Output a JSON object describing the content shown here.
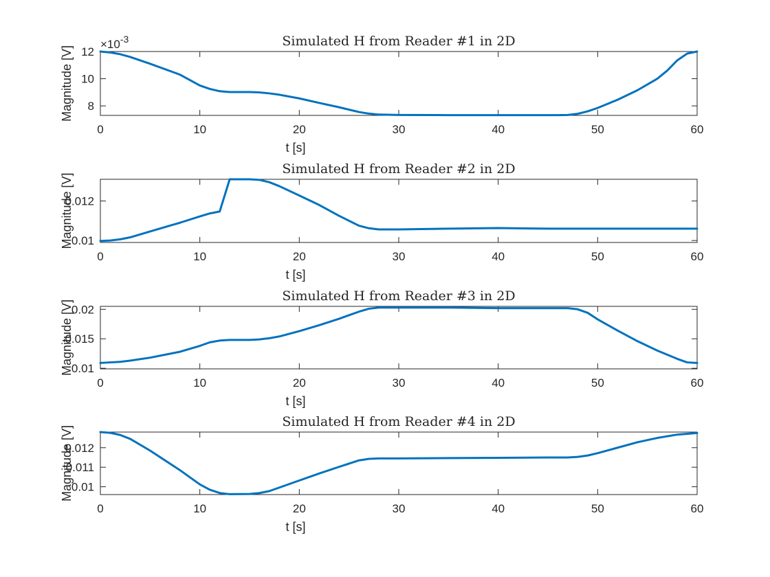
{
  "figure": {
    "background": "#ffffff",
    "line_color": "#0072BD"
  },
  "chart_data": [
    {
      "type": "line",
      "title": "Simulated H from Reader #1 in 2D",
      "xlabel": "t [s]",
      "ylabel": "Magnitude [V]",
      "xlim": [
        0,
        60
      ],
      "ylim": [
        7.3,
        12
      ],
      "xticks": [
        0,
        10,
        20,
        30,
        40,
        50,
        60
      ],
      "yticks": [
        8,
        10,
        12
      ],
      "ytick_labels": [
        "8",
        "10",
        "12"
      ],
      "y_exponent_label": "×10",
      "y_exponent_power": "-3",
      "series": [
        {
          "x": [
            0,
            1,
            2,
            3,
            5,
            8,
            10,
            11,
            12,
            13,
            15,
            16,
            17,
            18,
            20,
            22,
            24,
            26,
            27,
            28,
            30,
            35,
            40,
            45,
            46,
            47,
            48,
            49,
            50,
            52,
            54,
            56,
            57,
            58,
            59,
            60
          ],
          "y": [
            12.0,
            11.93,
            11.8,
            11.6,
            11.1,
            10.3,
            9.5,
            9.25,
            9.08,
            9.02,
            9.02,
            8.99,
            8.92,
            8.82,
            8.55,
            8.22,
            7.9,
            7.55,
            7.43,
            7.36,
            7.33,
            7.32,
            7.32,
            7.32,
            7.32,
            7.33,
            7.42,
            7.6,
            7.85,
            8.45,
            9.15,
            10.0,
            10.6,
            11.35,
            11.85,
            12.0
          ]
        }
      ]
    },
    {
      "type": "line",
      "title": "Simulated H from Reader #2 in 2D",
      "xlabel": "t [s]",
      "ylabel": "Magnitude [V]",
      "xlim": [
        0,
        60
      ],
      "ylim": [
        0.0099,
        0.0131
      ],
      "xticks": [
        0,
        10,
        20,
        30,
        40,
        50,
        60
      ],
      "yticks": [
        0.01,
        0.012
      ],
      "ytick_labels": [
        "0.01",
        "0.012"
      ],
      "series": [
        {
          "x": [
            0,
            1,
            2,
            3,
            5,
            8,
            10,
            11,
            12,
            13,
            15,
            16,
            17,
            18,
            20,
            22,
            24,
            26,
            27,
            28,
            30,
            35,
            40,
            45,
            47,
            48,
            49,
            50,
            52,
            54,
            55,
            56,
            58,
            60
          ],
          "y": [
            0.00998,
            0.01,
            0.01006,
            0.01016,
            0.01046,
            0.0109,
            0.01122,
            0.01137,
            0.01147,
            0.0131,
            0.0131,
            0.01307,
            0.01295,
            0.01275,
            0.01228,
            0.0118,
            0.01125,
            0.01075,
            0.01062,
            0.01056,
            0.01056,
            0.0106,
            0.01063,
            0.0106,
            0.0106,
            0.0106,
            0.0106,
            0.0106,
            0.0106,
            0.0106,
            0.0106,
            0.0106,
            0.0106,
            0.0106
          ]
        }
      ]
    },
    {
      "type": "line",
      "title": "Simulated H from Reader #3 in 2D",
      "xlabel": "t [s]",
      "ylabel": "Magnitude [V]",
      "xlim": [
        0,
        60
      ],
      "ylim": [
        0.0099,
        0.0205
      ],
      "xticks": [
        0,
        10,
        20,
        30,
        40,
        50,
        60
      ],
      "yticks": [
        0.01,
        0.015,
        0.02
      ],
      "ytick_labels": [
        "0.01",
        "0.015",
        "0.02"
      ],
      "series": [
        {
          "x": [
            0,
            1,
            2,
            3,
            5,
            8,
            10,
            11,
            12,
            13,
            15,
            16,
            17,
            18,
            20,
            22,
            24,
            26,
            27,
            28,
            30,
            35,
            40,
            45,
            46,
            47,
            48,
            49,
            50,
            52,
            54,
            56,
            58,
            59,
            60
          ],
          "y": [
            0.0109,
            0.011,
            0.0111,
            0.0113,
            0.0118,
            0.0128,
            0.0138,
            0.0144,
            0.0147,
            0.0148,
            0.0148,
            0.0149,
            0.0151,
            0.0154,
            0.0163,
            0.0173,
            0.0184,
            0.0196,
            0.0201,
            0.0203,
            0.0203,
            0.0203,
            0.0202,
            0.0202,
            0.0202,
            0.0202,
            0.02,
            0.0194,
            0.0183,
            0.0164,
            0.0146,
            0.013,
            0.0116,
            0.011,
            0.0109
          ]
        }
      ]
    },
    {
      "type": "line",
      "title": "Simulated H from Reader #4 in 2D",
      "xlabel": "t [s]",
      "ylabel": "Magnitude [V]",
      "xlim": [
        0,
        60
      ],
      "ylim": [
        0.0096,
        0.0128
      ],
      "xticks": [
        0,
        10,
        20,
        30,
        40,
        50,
        60
      ],
      "yticks": [
        0.01,
        0.011,
        0.012
      ],
      "ytick_labels": [
        "0.01",
        "0.011",
        "0.012"
      ],
      "series": [
        {
          "x": [
            0,
            1,
            2,
            3,
            5,
            8,
            10,
            11,
            12,
            13,
            15,
            16,
            17,
            18,
            20,
            22,
            24,
            26,
            27,
            28,
            30,
            35,
            40,
            45,
            46,
            47,
            48,
            49,
            50,
            52,
            54,
            56,
            58,
            60
          ],
          "y": [
            0.0128,
            0.01276,
            0.01265,
            0.01245,
            0.01185,
            0.01085,
            0.01012,
            0.00985,
            0.00968,
            0.00962,
            0.00963,
            0.00968,
            0.00978,
            0.00996,
            0.01032,
            0.01068,
            0.01102,
            0.01135,
            0.01143,
            0.01145,
            0.01145,
            0.01147,
            0.01148,
            0.0115,
            0.0115,
            0.0115,
            0.01153,
            0.0116,
            0.01172,
            0.012,
            0.01228,
            0.0125,
            0.01267,
            0.01275
          ]
        }
      ]
    }
  ]
}
